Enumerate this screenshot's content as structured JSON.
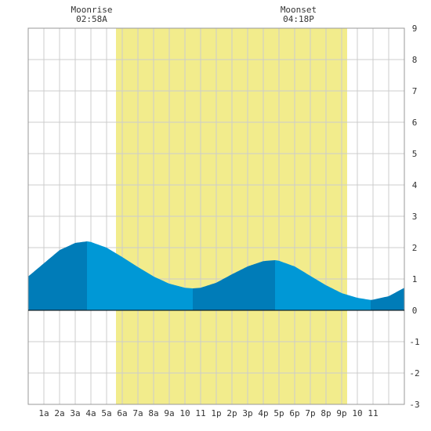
{
  "moon": {
    "rise_label": "Moonrise",
    "rise_time": "02:58A",
    "set_label": "Moonset",
    "set_time": "04:18P"
  },
  "chart_data": {
    "type": "area",
    "title": "",
    "xlabel": "",
    "ylabel": "",
    "xlim": [
      0,
      24
    ],
    "ylim": [
      -3,
      9
    ],
    "grid": true,
    "x_tick_labels": [
      "1a",
      "2a",
      "3a",
      "4a",
      "5a",
      "6a",
      "7a",
      "8a",
      "9a",
      "10",
      "11",
      "1p",
      "2p",
      "3p",
      "4p",
      "5p",
      "6p",
      "7p",
      "8p",
      "9p",
      "10",
      "11"
    ],
    "y_tick_labels": [
      "9",
      "8",
      "7",
      "6",
      "5",
      "4",
      "3",
      "2",
      "1",
      "0",
      "-1",
      "-2",
      "-3"
    ],
    "daylight_band": {
      "start_hour": 5.6,
      "end_hour": 20.35
    },
    "tide_extremes": [
      {
        "hour": 3.75,
        "height": 2.2,
        "type": "high"
      },
      {
        "hour": 10.5,
        "height": 0.7,
        "type": "low"
      },
      {
        "hour": 15.75,
        "height": 1.6,
        "type": "high"
      },
      {
        "hour": 21.85,
        "height": 0.33,
        "type": "low"
      }
    ],
    "series": [
      {
        "x": [
          0,
          1,
          2,
          3,
          3.75,
          4,
          5,
          6,
          7,
          8,
          9,
          10,
          10.5,
          11,
          12,
          13,
          14,
          15,
          15.75,
          16,
          17,
          18,
          19,
          20,
          21,
          21.85,
          22,
          23,
          24
        ],
        "y": [
          1.08,
          1.5,
          1.92,
          2.15,
          2.2,
          2.18,
          2.0,
          1.7,
          1.38,
          1.08,
          0.85,
          0.72,
          0.7,
          0.72,
          0.88,
          1.15,
          1.4,
          1.57,
          1.6,
          1.58,
          1.4,
          1.1,
          0.8,
          0.55,
          0.4,
          0.33,
          0.34,
          0.45,
          0.72
        ]
      }
    ],
    "colors": {
      "grid": "#cccccc",
      "daylight": "#f2ec8c",
      "fill_light": "#0098d6",
      "fill_dark": "#007cb8",
      "zero_line": "#000000"
    }
  }
}
